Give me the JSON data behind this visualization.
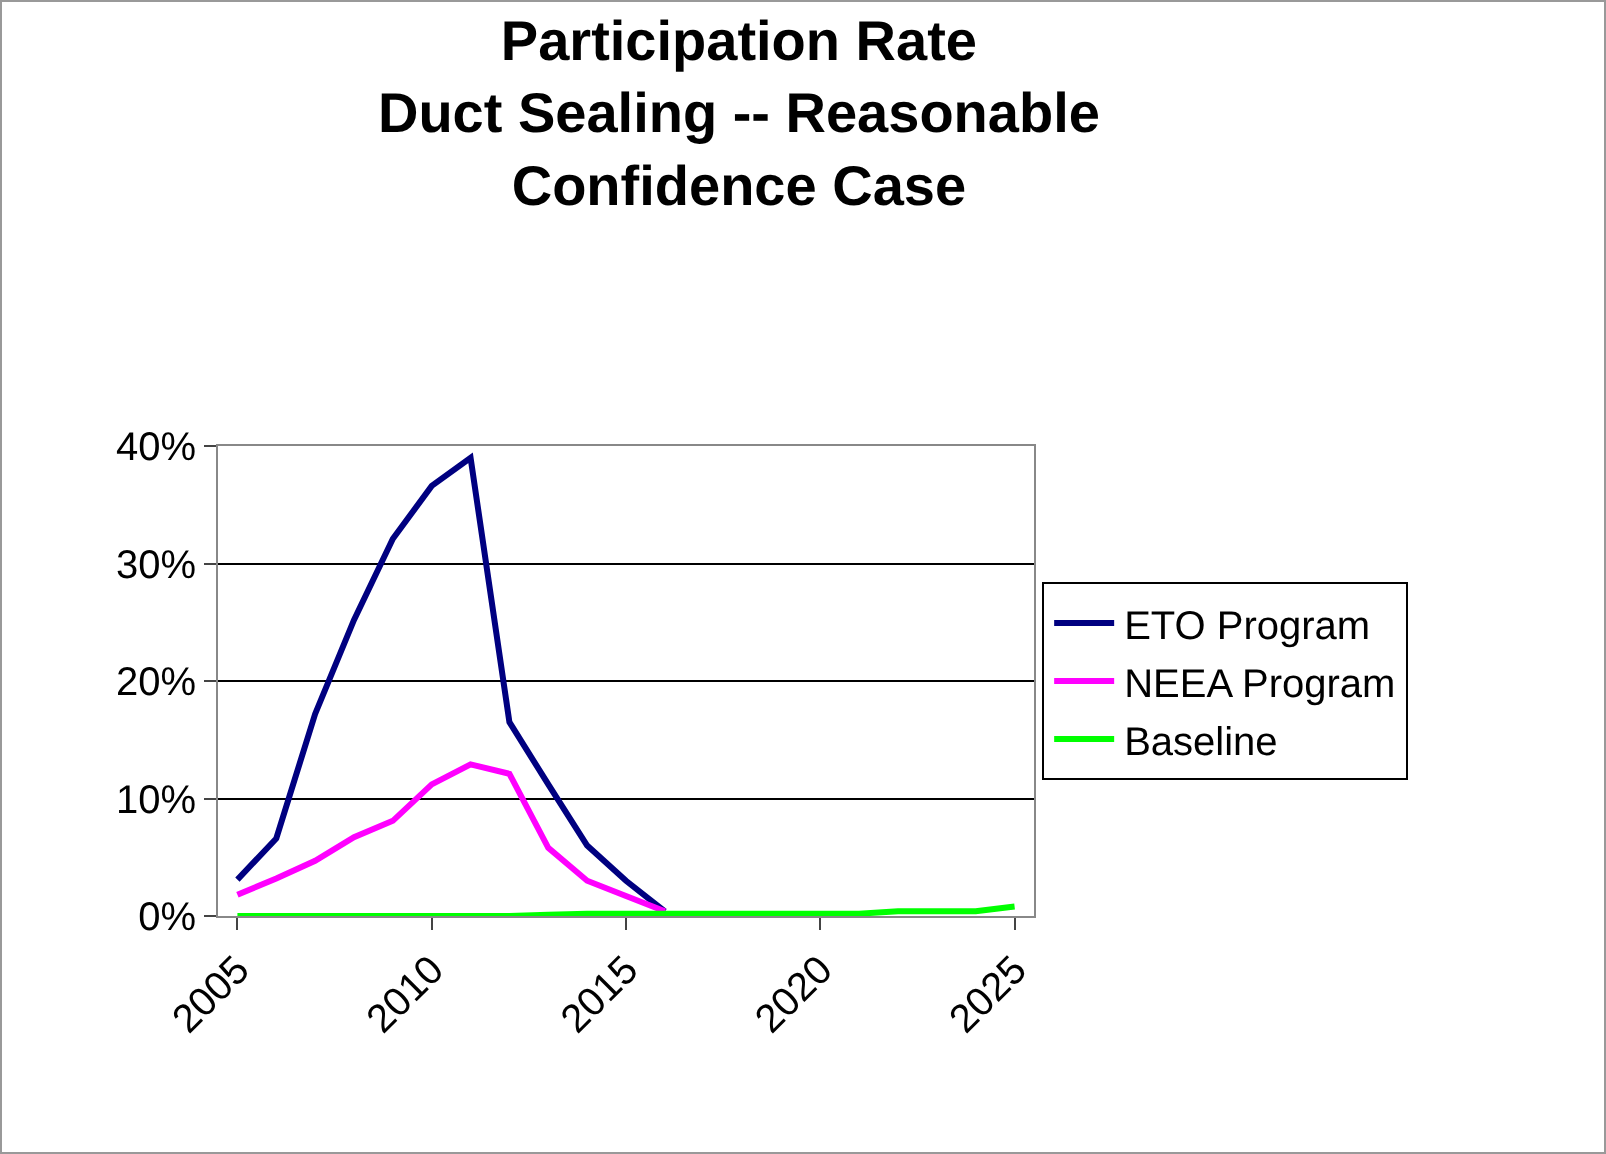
{
  "chart_data": {
    "type": "line",
    "title": "Participation Rate\nDuct Sealing -- Reasonable\nConfidence Case",
    "x": [
      2005,
      2006,
      2007,
      2008,
      2009,
      2010,
      2011,
      2012,
      2013,
      2014,
      2015,
      2016,
      2017,
      2018,
      2019,
      2020,
      2021,
      2022,
      2023,
      2024,
      2025
    ],
    "series": [
      {
        "name": "ETO Program",
        "color": "#000080",
        "values": [
          3.1,
          6.6,
          17.2,
          25.2,
          32.1,
          36.6,
          39.0,
          16.5,
          11.2,
          6.0,
          3.0,
          0.4,
          null,
          null,
          null,
          null,
          null,
          null,
          null,
          null,
          null
        ]
      },
      {
        "name": "NEEA Program",
        "color": "#ff00ff",
        "values": [
          1.8,
          3.2,
          4.7,
          6.7,
          8.1,
          11.2,
          12.9,
          12.1,
          5.8,
          3.0,
          1.7,
          0.4,
          null,
          null,
          null,
          null,
          null,
          null,
          null,
          null,
          null
        ]
      },
      {
        "name": "Baseline",
        "color": "#00ff00",
        "values": [
          0,
          0,
          0,
          0,
          0,
          0,
          0,
          0,
          0.1,
          0.2,
          0.2,
          0.2,
          0.2,
          0.2,
          0.2,
          0.2,
          0.2,
          0.4,
          0.4,
          0.4,
          0.8
        ]
      }
    ],
    "xlim": [
      2004.5,
      2025.5
    ],
    "xticks": [
      2005,
      2010,
      2015,
      2020,
      2025
    ],
    "ylim": [
      0,
      40
    ],
    "yticks": [
      {
        "value": 0,
        "label": "0%"
      },
      {
        "value": 10,
        "label": "10%"
      },
      {
        "value": 20,
        "label": "20%"
      },
      {
        "value": 30,
        "label": "30%"
      },
      {
        "value": 40,
        "label": "40%"
      }
    ],
    "grid": "y",
    "legend": "right",
    "marker": "none",
    "line_style": "solid"
  }
}
